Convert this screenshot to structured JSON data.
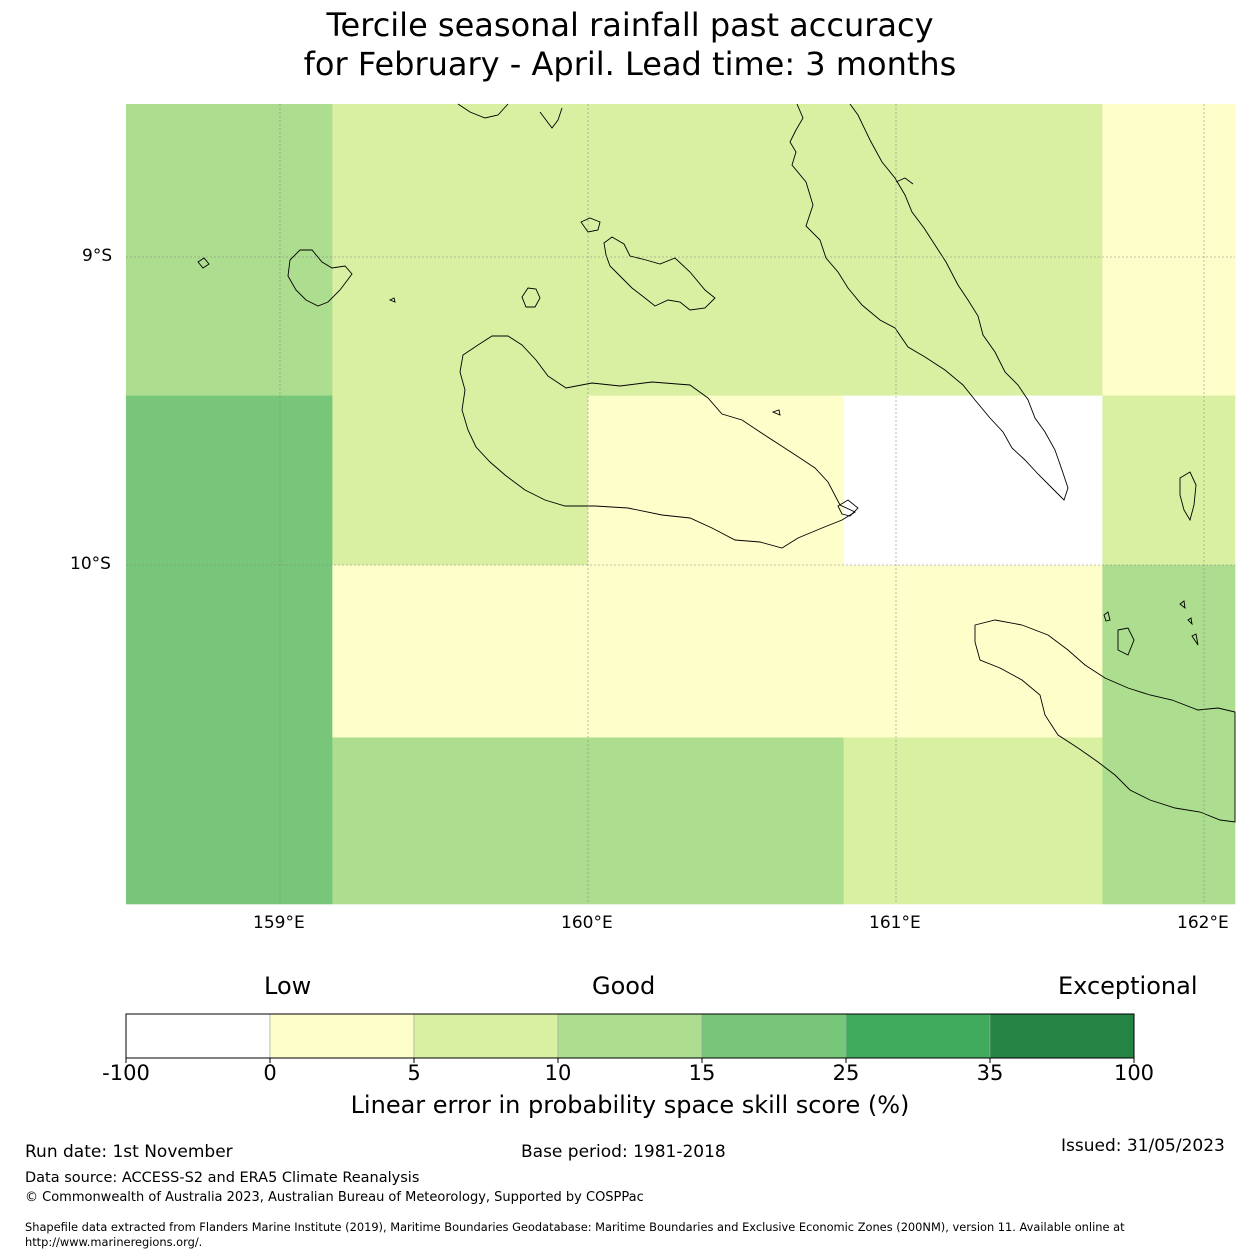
{
  "title": {
    "line1": "Tercile seasonal rainfall past accuracy",
    "line2": "for February - April. Lead time: 3 months"
  },
  "map": {
    "lat_labels": [
      "9°S",
      "10°S"
    ],
    "lon_labels": [
      "159°E",
      "160°E",
      "161°E",
      "162°E"
    ],
    "extent": {
      "lon_min": 158.5,
      "lon_max": 162.1,
      "lat_min": -11.1,
      "lat_max": -8.5
    },
    "grid_lon_edges": [
      158.5,
      159.17,
      160.0,
      160.83,
      161.67,
      162.1
    ],
    "grid_lat_edges": [
      -8.5,
      -9.45,
      -10.0,
      -10.56,
      -11.1
    ],
    "cells": [
      [
        10,
        5,
        5,
        5,
        0
      ],
      [
        15,
        5,
        0,
        -100,
        5
      ],
      [
        15,
        0,
        0,
        0,
        10
      ],
      [
        15,
        10,
        10,
        5,
        10
      ]
    ],
    "coastline_icon": "coastline-icon"
  },
  "legend": {
    "qualitative": [
      "Low",
      "Good",
      "Exceptional"
    ],
    "bins": [
      {
        "from": -100,
        "to": 0,
        "color": "#ffffff"
      },
      {
        "from": 0,
        "to": 5,
        "color": "#fefecb"
      },
      {
        "from": 5,
        "to": 10,
        "color": "#d9efa2"
      },
      {
        "from": 10,
        "to": 15,
        "color": "#addd8e"
      },
      {
        "from": 15,
        "to": 25,
        "color": "#78c679"
      },
      {
        "from": 25,
        "to": 35,
        "color": "#41ab5d"
      },
      {
        "from": 35,
        "to": 100,
        "color": "#238443"
      }
    ],
    "tick_labels": [
      "-100",
      "0",
      "5",
      "10",
      "15",
      "25",
      "35",
      "100"
    ],
    "caption": "Linear error in probability space skill score (%)"
  },
  "footer": {
    "run_date": "Run date: 1st November",
    "base_period": "Base period: 1981-2018",
    "issued": "Issued: 31/05/2023",
    "data_source": "Data source: ACCESS-S2 and ERA5 Climate Reanalysis",
    "copyright": "© Commonwealth of Australia 2023, Australian Bureau of Meteorology, Supported by COSPPac",
    "shapefile_line1": "Shapefile data extracted from Flanders Marine Institute (2019), Maritime Boundaries Geodatabase: Maritime Boundaries and Exclusive Economic Zones (200NM), version 11. Available online at",
    "shapefile_line2": "http://www.marineregions.org/."
  }
}
